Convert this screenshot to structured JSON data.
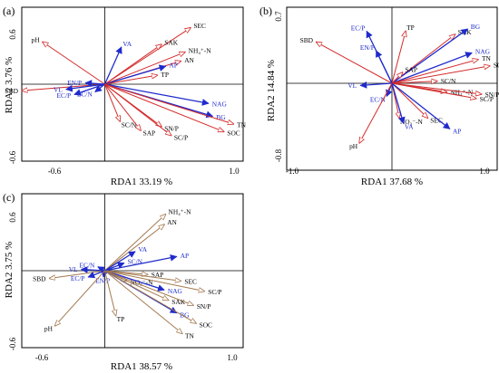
{
  "colors": {
    "env": "#1f2bcb",
    "soil_a": "#d42a2a",
    "soil_c": "#a47a50"
  },
  "chart_data": [
    {
      "type": "scatter",
      "panel": "(a)",
      "xlabel": "RDA1 33.19 %",
      "ylabel": "RDA2 3.76 %",
      "xlim": [
        -0.6,
        1.0
      ],
      "ylim": [
        -0.6,
        0.6
      ],
      "xticks": [
        "-0.6",
        "1.0"
      ],
      "yticks": [
        "0.6",
        "-0.6"
      ],
      "vectors": [
        {
          "name": "pH",
          "x": -0.45,
          "y": 0.33,
          "group": "soil"
        },
        {
          "name": "SBD",
          "x": -0.6,
          "y": -0.05,
          "group": "soil"
        },
        {
          "name": "SEC",
          "x": 0.62,
          "y": 0.44,
          "group": "soil"
        },
        {
          "name": "SAK",
          "x": 0.41,
          "y": 0.31,
          "group": "soil"
        },
        {
          "name": "NH₄⁺-N",
          "x": 0.58,
          "y": 0.25,
          "group": "soil"
        },
        {
          "name": "AN",
          "x": 0.55,
          "y": 0.18,
          "group": "soil"
        },
        {
          "name": "AP",
          "x": 0.44,
          "y": 0.14,
          "group": "env"
        },
        {
          "name": "TP",
          "x": 0.38,
          "y": 0.07,
          "group": "soil"
        },
        {
          "name": "VA",
          "x": 0.12,
          "y": 0.29,
          "group": "env"
        },
        {
          "name": "EN/P",
          "x": -0.14,
          "y": 0.01,
          "group": "env"
        },
        {
          "name": "VL",
          "x": -0.28,
          "y": -0.04,
          "group": "env"
        },
        {
          "name": "EC/P",
          "x": -0.22,
          "y": -0.08,
          "group": "env"
        },
        {
          "name": "EC/N",
          "x": -0.07,
          "y": -0.06,
          "group": "env"
        },
        {
          "name": "NAG",
          "x": 0.75,
          "y": -0.15,
          "group": "env"
        },
        {
          "name": "BG",
          "x": 0.78,
          "y": -0.25,
          "group": "env"
        },
        {
          "name": "TN",
          "x": 0.93,
          "y": -0.31,
          "group": "soil"
        },
        {
          "name": "SOC",
          "x": 0.86,
          "y": -0.37,
          "group": "soil"
        },
        {
          "name": "SN/P",
          "x": 0.41,
          "y": -0.33,
          "group": "soil"
        },
        {
          "name": "SC/P",
          "x": 0.48,
          "y": -0.4,
          "group": "soil"
        },
        {
          "name": "SC/N",
          "x": 0.11,
          "y": -0.29,
          "group": "soil"
        },
        {
          "name": "SAP",
          "x": 0.26,
          "y": -0.36,
          "group": "soil"
        }
      ]
    },
    {
      "type": "scatter",
      "panel": "(b)",
      "xlabel": "RDA1 37.68 %",
      "ylabel": "RDA2 14.84 %",
      "xlim": [
        -1.0,
        1.0
      ],
      "ylim": [
        -0.8,
        0.7
      ],
      "xticks": [
        "-1.0",
        "1.0"
      ],
      "yticks": [
        "0.7",
        "-0.8"
      ],
      "vectors": [
        {
          "name": "SBD",
          "x": -0.72,
          "y": 0.38,
          "group": "soil"
        },
        {
          "name": "EC/P",
          "x": -0.24,
          "y": 0.48,
          "group": "env"
        },
        {
          "name": "EN/P",
          "x": -0.15,
          "y": 0.3,
          "group": "env"
        },
        {
          "name": "TP",
          "x": 0.13,
          "y": 0.48,
          "group": "soil"
        },
        {
          "name": "SAK",
          "x": 0.6,
          "y": 0.45,
          "group": "soil"
        },
        {
          "name": "BG",
          "x": 0.72,
          "y": 0.5,
          "group": "env"
        },
        {
          "name": "NAG",
          "x": 0.76,
          "y": 0.28,
          "group": "env"
        },
        {
          "name": "TN",
          "x": 0.82,
          "y": 0.22,
          "group": "soil"
        },
        {
          "name": "SOC",
          "x": 0.93,
          "y": 0.16,
          "group": "soil"
        },
        {
          "name": "SC/N",
          "x": 0.43,
          "y": 0.02,
          "group": "soil"
        },
        {
          "name": "SAP",
          "x": 0.1,
          "y": 0.1,
          "group": "soil"
        },
        {
          "name": "VL",
          "x": -0.3,
          "y": -0.02,
          "group": "env"
        },
        {
          "name": "EC/N",
          "x": -0.05,
          "y": -0.12,
          "group": "env"
        },
        {
          "name": "NH₄⁺-N",
          "x": 0.52,
          "y": -0.08,
          "group": "soil"
        },
        {
          "name": "SN/P",
          "x": 0.85,
          "y": -0.1,
          "group": "soil"
        },
        {
          "name": "SC/P",
          "x": 0.8,
          "y": -0.14,
          "group": "soil"
        },
        {
          "name": "NO₃⁻-N",
          "x": 0.07,
          "y": -0.32,
          "group": "soil"
        },
        {
          "name": "VA",
          "x": 0.11,
          "y": -0.37,
          "group": "env"
        },
        {
          "name": "SEC",
          "x": 0.34,
          "y": -0.32,
          "group": "soil"
        },
        {
          "name": "AP",
          "x": 0.55,
          "y": -0.42,
          "group": "env"
        },
        {
          "name": "pH",
          "x": -0.31,
          "y": -0.55,
          "group": "soil"
        }
      ]
    },
    {
      "type": "scatter",
      "panel": "(c)",
      "xlabel": "RDA1 38.57 %",
      "ylabel": "RDA2 3.75 %",
      "xlim": [
        -0.6,
        1.0
      ],
      "ylim": [
        -0.6,
        0.6
      ],
      "xticks": [
        "-0.6",
        "1.0"
      ],
      "yticks": [
        "0.6",
        "-0.6"
      ],
      "vectors": [
        {
          "name": "NH₄⁺-N",
          "x": 0.44,
          "y": 0.44,
          "group": "soil"
        },
        {
          "name": "AN",
          "x": 0.43,
          "y": 0.36,
          "group": "soil"
        },
        {
          "name": "AP",
          "x": 0.52,
          "y": 0.11,
          "group": "env"
        },
        {
          "name": "VA",
          "x": 0.22,
          "y": 0.15,
          "group": "env"
        },
        {
          "name": "SC/N",
          "x": 0.14,
          "y": 0.06,
          "group": "env"
        },
        {
          "name": "VL",
          "x": -0.17,
          "y": 0.01,
          "group": "env"
        },
        {
          "name": "EC/N",
          "x": -0.05,
          "y": 0.03,
          "group": "env"
        },
        {
          "name": "SBD",
          "x": -0.4,
          "y": -0.06,
          "group": "soil"
        },
        {
          "name": "EC/P",
          "x": -0.12,
          "y": -0.05,
          "group": "env"
        },
        {
          "name": "EN/P",
          "x": -0.01,
          "y": -0.05,
          "group": "env"
        },
        {
          "name": "NO₃⁻-N",
          "x": 0.16,
          "y": -0.08,
          "group": "soil"
        },
        {
          "name": "SAP",
          "x": 0.31,
          "y": -0.03,
          "group": "soil"
        },
        {
          "name": "SEC",
          "x": 0.55,
          "y": -0.08,
          "group": "soil"
        },
        {
          "name": "NAG",
          "x": 0.43,
          "y": -0.15,
          "group": "env"
        },
        {
          "name": "SC/P",
          "x": 0.72,
          "y": -0.16,
          "group": "soil"
        },
        {
          "name": "SAK",
          "x": 0.46,
          "y": -0.23,
          "group": "soil"
        },
        {
          "name": "SN/P",
          "x": 0.64,
          "y": -0.27,
          "group": "soil"
        },
        {
          "name": "BG",
          "x": 0.52,
          "y": -0.33,
          "group": "env"
        },
        {
          "name": "SOC",
          "x": 0.66,
          "y": -0.41,
          "group": "soil"
        },
        {
          "name": "TN",
          "x": 0.56,
          "y": -0.49,
          "group": "soil"
        },
        {
          "name": "TP",
          "x": 0.08,
          "y": -0.35,
          "group": "soil"
        },
        {
          "name": "pH",
          "x": -0.36,
          "y": -0.43,
          "group": "soil"
        }
      ]
    }
  ]
}
